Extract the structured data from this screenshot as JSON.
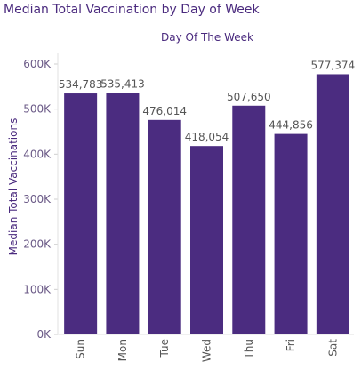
{
  "chart_data": {
    "type": "bar",
    "title": "Median Total Vaccination by Day of Week",
    "header": "Day Of The Week",
    "ylabel": "Median Total Vaccinations",
    "xlabel": "",
    "categories": [
      "Sun",
      "Mon",
      "Tue",
      "Wed",
      "Thu",
      "Fri",
      "Sat"
    ],
    "values": [
      534783,
      535413,
      476014,
      418054,
      507650,
      444856,
      577374
    ],
    "value_labels": [
      "534,783",
      "535,413",
      "476,014",
      "418,054",
      "507,650",
      "444,856",
      "577,374"
    ],
    "ylim": [
      0,
      620000
    ],
    "yticks": [
      0,
      100000,
      200000,
      300000,
      400000,
      500000,
      600000
    ],
    "ytick_labels": [
      "0K",
      "100K",
      "200K",
      "300K",
      "400K",
      "500K",
      "600K"
    ],
    "grid": false,
    "bar_color": "#4b2c80"
  }
}
